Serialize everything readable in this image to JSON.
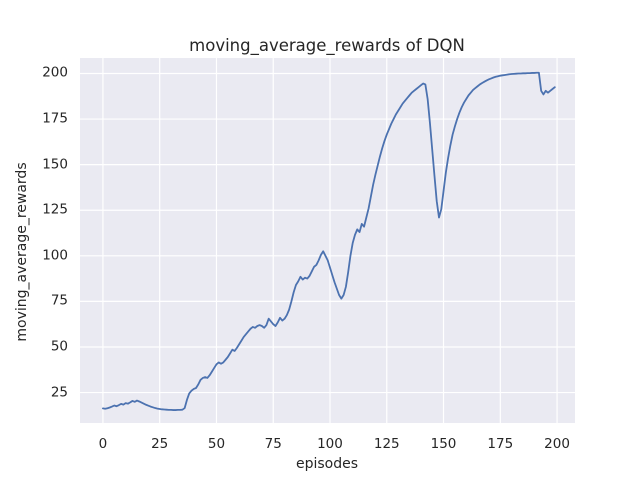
{
  "figure": {
    "title": "moving_average_rewards of DQN",
    "xlabel": "episodes",
    "ylabel": "moving_average_rewards"
  },
  "colors": {
    "line": "#4C72B0",
    "plot_background": "#EAEAF2",
    "grid": "#FFFFFF",
    "text": "#262626"
  },
  "chart_data": {
    "type": "line",
    "title": "moving_average_rewards of DQN",
    "xlabel": "episodes",
    "ylabel": "moving_average_rewards",
    "legend": null,
    "grid": true,
    "x_ticks": [
      0,
      25,
      50,
      75,
      100,
      125,
      150,
      175,
      200
    ],
    "y_ticks": [
      25,
      50,
      75,
      100,
      125,
      150,
      175,
      200
    ],
    "xlim": [
      -10.1,
      207.9
    ],
    "ylim": [
      8.3,
      208.5
    ],
    "x_start": 0,
    "x_step": 1,
    "series": [
      {
        "name": "moving_average_rewards",
        "values": [
          16.3,
          16.1,
          16.4,
          16.8,
          17.3,
          17.9,
          17.5,
          18.1,
          18.8,
          18.4,
          19.2,
          18.9,
          19.6,
          20.4,
          19.9,
          20.6,
          20.1,
          19.5,
          18.9,
          18.3,
          17.8,
          17.3,
          16.9,
          16.5,
          16.2,
          16.0,
          15.8,
          15.7,
          15.6,
          15.5,
          15.5,
          15.4,
          15.4,
          15.5,
          15.5,
          15.6,
          16.5,
          21.0,
          24.5,
          26.0,
          27.0,
          27.5,
          29.5,
          32.0,
          33.0,
          33.5,
          33.0,
          34.5,
          36.5,
          38.5,
          40.5,
          41.5,
          40.8,
          41.5,
          43.0,
          44.5,
          46.5,
          48.5,
          47.8,
          49.5,
          51.5,
          53.5,
          55.5,
          57.0,
          58.5,
          60.0,
          61.0,
          60.5,
          61.5,
          62.0,
          61.5,
          60.5,
          62.0,
          65.5,
          64.0,
          62.5,
          61.5,
          63.5,
          66.0,
          64.5,
          65.5,
          67.5,
          70.5,
          75.0,
          80.0,
          84.0,
          86.0,
          88.5,
          87.0,
          88.0,
          87.5,
          89.0,
          91.5,
          94.0,
          95.0,
          97.5,
          100.5,
          102.5,
          100.0,
          97.5,
          93.5,
          89.5,
          85.5,
          82.0,
          78.5,
          76.5,
          78.5,
          83.0,
          91.0,
          100.0,
          107.0,
          111.5,
          114.5,
          113.0,
          117.5,
          116.0,
          121.0,
          126.0,
          132.5,
          139.0,
          144.5,
          149.5,
          154.5,
          159.0,
          163.0,
          166.5,
          169.5,
          172.5,
          175.0,
          177.5,
          179.5,
          181.5,
          183.5,
          185.0,
          186.5,
          188.0,
          189.5,
          190.5,
          191.5,
          192.5,
          193.5,
          194.5,
          194.0,
          186.0,
          173.0,
          158.5,
          144.0,
          130.0,
          121.0,
          125.5,
          135.5,
          145.5,
          153.5,
          160.5,
          166.5,
          171.0,
          175.0,
          178.5,
          181.5,
          184.0,
          186.0,
          188.0,
          189.5,
          191.0,
          192.0,
          193.0,
          194.0,
          194.8,
          195.5,
          196.2,
          196.8,
          197.3,
          197.8,
          198.2,
          198.5,
          198.8,
          199.0,
          199.2,
          199.4,
          199.6,
          199.7,
          199.8,
          199.9,
          200.0,
          200.0,
          200.1,
          200.1,
          200.2,
          200.2,
          200.3,
          200.3,
          200.4,
          200.4,
          190.5,
          188.5,
          190.5,
          189.5,
          190.5,
          191.5,
          192.5
        ]
      }
    ]
  }
}
